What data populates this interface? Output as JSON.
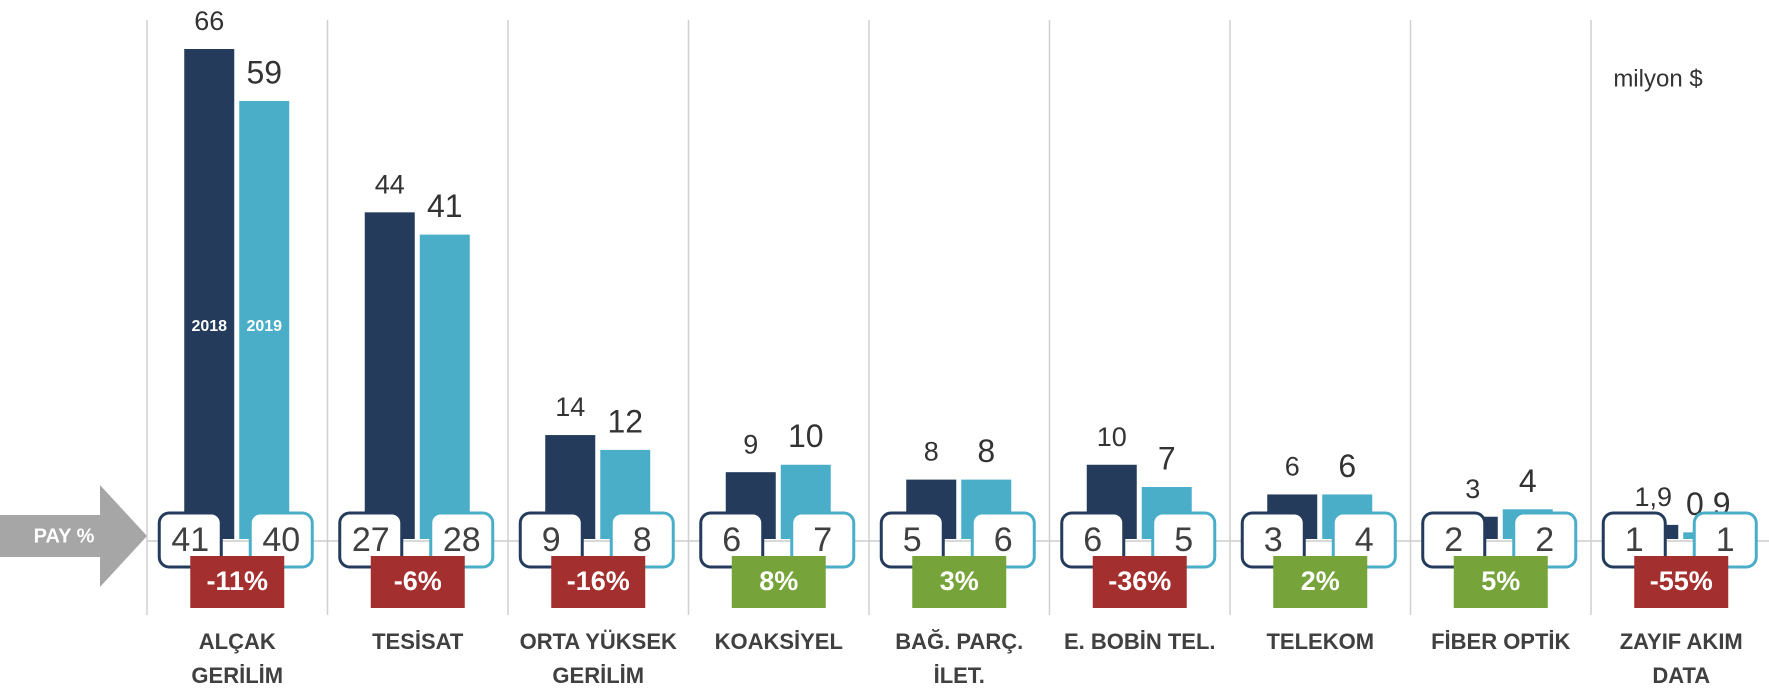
{
  "chart_data": {
    "type": "bar",
    "unit": "milyon $",
    "share_label": "PAY %",
    "categories": [
      [
        "ALÇAK",
        "GERİLİM"
      ],
      [
        "TESİSAT"
      ],
      [
        "ORTA YÜKSEK",
        "GERİLİM"
      ],
      [
        "KOAKSİYEL"
      ],
      [
        "BAĞ. PARÇ.",
        "İLET."
      ],
      [
        "E. BOBİN TEL."
      ],
      [
        "TELEKOM"
      ],
      [
        "FİBER OPTİK"
      ],
      [
        "ZAYIF AKIM",
        "DATA"
      ]
    ],
    "series": [
      {
        "name": "2018",
        "color": "#243b5c",
        "values": [
          66,
          44,
          14,
          9,
          8,
          10,
          6,
          3,
          1.9
        ],
        "value_labels": [
          "66",
          "44",
          "14",
          "9",
          "8",
          "10",
          "6",
          "3",
          "1,9"
        ],
        "share": [
          41,
          27,
          9,
          6,
          5,
          6,
          3,
          2,
          1
        ]
      },
      {
        "name": "2019",
        "color": "#4aaec8",
        "values": [
          59,
          41,
          12,
          10,
          8,
          7,
          6,
          4,
          0.9
        ],
        "share": [
          40,
          28,
          8,
          7,
          6,
          5,
          4,
          2,
          1
        ]
      }
    ],
    "change": {
      "values": [
        -11,
        -6,
        -16,
        8,
        3,
        -36,
        2,
        5,
        -55
      ],
      "labels": [
        "-11%",
        "-6%",
        "-16%",
        "8%",
        "3%",
        "-36%",
        "2%",
        "5%",
        "-55%"
      ],
      "positive_color": "#76a33a",
      "negative_color": "#a3302f"
    }
  }
}
